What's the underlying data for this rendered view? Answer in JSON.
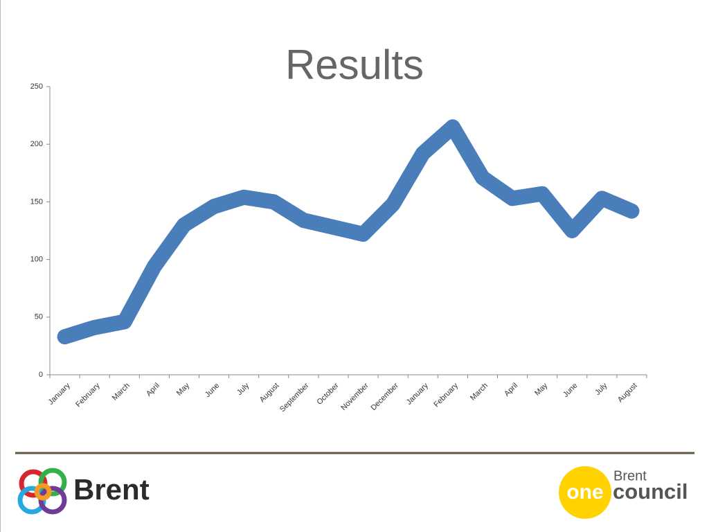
{
  "chart_data": {
    "type": "line",
    "title": "Results",
    "categories": [
      "January",
      "February",
      "March",
      "April",
      "May",
      "June",
      "July",
      "August",
      "September",
      "October",
      "November",
      "December",
      "January",
      "February",
      "March",
      "April",
      "May",
      "June",
      "July",
      "August"
    ],
    "series": [
      {
        "color": "#4a7ebb",
        "values": [
          33,
          41,
          46,
          94,
          130,
          146,
          154,
          150,
          134,
          128,
          122,
          148,
          192,
          215,
          171,
          153,
          157,
          125,
          153,
          142
        ]
      }
    ],
    "ylim": [
      0,
      250
    ],
    "yticks": [
      0,
      50,
      100,
      150,
      200,
      250
    ],
    "grid": false
  },
  "footer": {
    "left_logo": "Brent",
    "right_logo_top": "Brent",
    "right_logo_one": "one",
    "right_logo_council": "council"
  }
}
